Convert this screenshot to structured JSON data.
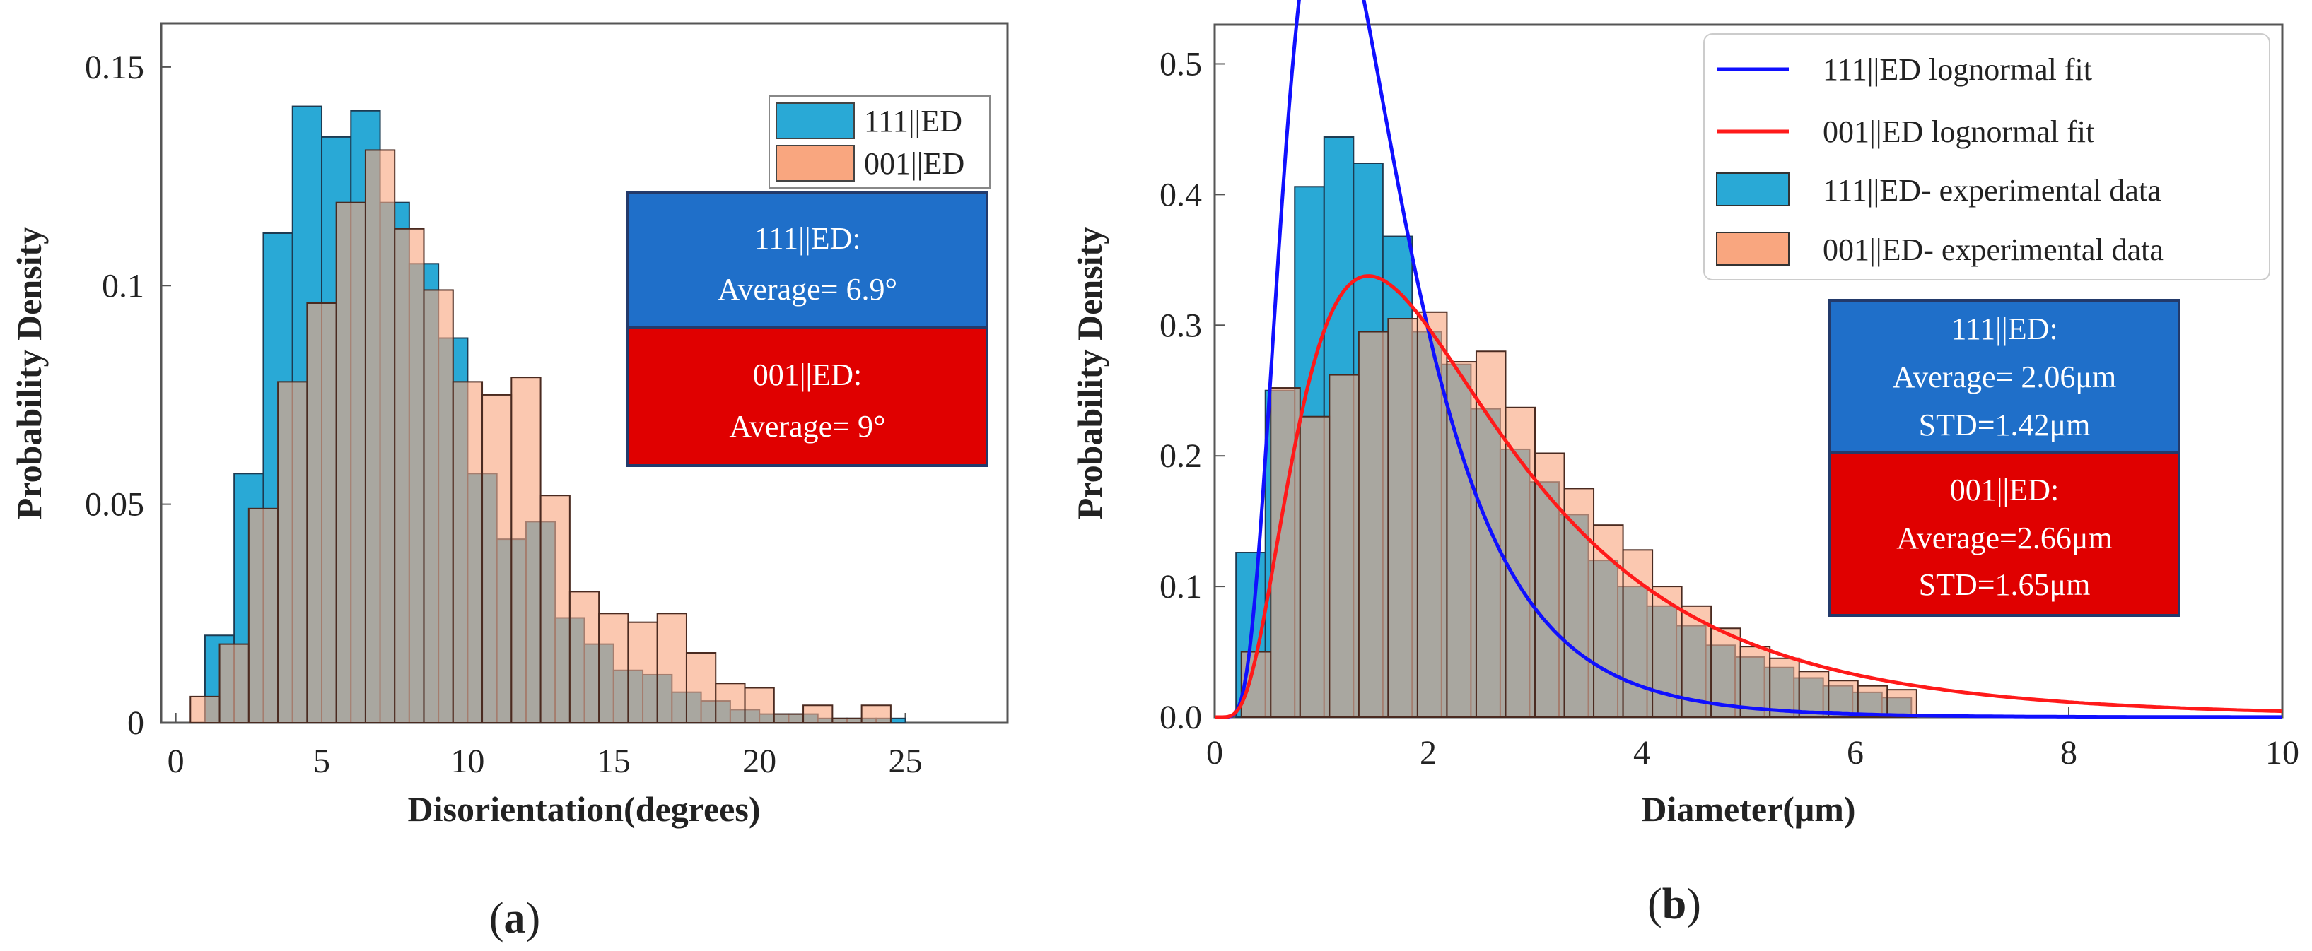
{
  "colors": {
    "blue_bar": "#29a9d6",
    "orange_bar": "#f9a67f",
    "overlap": "#a87566",
    "blue_box": "#1f6fc9",
    "red_box": "#e00000",
    "blue_fit": "#1010ff",
    "red_fit": "#ff1a1a"
  },
  "chart_data": [
    {
      "type": "bar",
      "panel_label": "a",
      "title": "",
      "xlabel": "Disorientation(degrees)",
      "ylabel": "Probability Density",
      "xlim": [
        -0.5,
        28.5
      ],
      "ylim": [
        0,
        0.16
      ],
      "xticks": [
        0,
        5,
        10,
        15,
        20,
        25
      ],
      "xtick_labels": [
        "0",
        "5",
        "10",
        "15",
        "20",
        "25"
      ],
      "yticks": [
        0,
        0.05,
        0.1,
        0.15
      ],
      "ytick_labels": [
        "0",
        "0.05",
        "0.1",
        "0.15"
      ],
      "bin_width": 1.0,
      "legend_position": "top-right",
      "series": [
        {
          "name": "111||ED",
          "color": "#29a9d6",
          "bin_starts": [
            1,
            2,
            3,
            4,
            5,
            6,
            7,
            8,
            9,
            10,
            11,
            12,
            13,
            14,
            15,
            16,
            17,
            18,
            19,
            20,
            21,
            22,
            23,
            24
          ],
          "values": [
            0.02,
            0.057,
            0.112,
            0.141,
            0.134,
            0.14,
            0.119,
            0.105,
            0.088,
            0.057,
            0.042,
            0.046,
            0.024,
            0.018,
            0.012,
            0.011,
            0.007,
            0.005,
            0.003,
            0.002,
            0.002,
            0.001,
            0.001,
            0.001
          ]
        },
        {
          "name": "001||ED",
          "color": "#f9a67f",
          "bin_starts": [
            0.5,
            1.5,
            2.5,
            3.5,
            4.5,
            5.5,
            6.5,
            7.5,
            8.5,
            9.5,
            10.5,
            11.5,
            12.5,
            13.5,
            14.5,
            15.5,
            16.5,
            17.5,
            18.5,
            19.5,
            20.5,
            21.5,
            22.5,
            23.5
          ],
          "values": [
            0.006,
            0.018,
            0.049,
            0.078,
            0.096,
            0.119,
            0.131,
            0.113,
            0.099,
            0.078,
            0.075,
            0.079,
            0.052,
            0.03,
            0.025,
            0.023,
            0.025,
            0.016,
            0.009,
            0.008,
            0.002,
            0.004,
            0.001,
            0.004
          ]
        }
      ],
      "annotations": [
        {
          "series": "111||ED",
          "line1": "111||ED:",
          "line2": "Average= 6.9°"
        },
        {
          "series": "001||ED",
          "line1": "001||ED:",
          "line2": "Average= 9°"
        }
      ]
    },
    {
      "type": "bar",
      "panel_label": "b",
      "title": "",
      "xlabel": "Diameter(μm)",
      "ylabel": "Probability Density",
      "xlim": [
        0,
        10
      ],
      "ylim": [
        0,
        0.53
      ],
      "xticks": [
        0,
        2,
        4,
        6,
        8,
        10
      ],
      "xtick_labels": [
        "0",
        "2",
        "4",
        "6",
        "8",
        "10"
      ],
      "yticks": [
        0,
        0.1,
        0.2,
        0.3,
        0.4,
        0.5
      ],
      "ytick_labels": [
        "0.0",
        "0.1",
        "0.2",
        "0.3",
        "0.4",
        "0.5"
      ],
      "bin_width": 0.275,
      "legend_position": "top-right",
      "series": [
        {
          "name": "111||ED- experimental data",
          "color": "#29a9d6",
          "bin_starts": [
            0.2,
            0.475,
            0.75,
            1.025,
            1.3,
            1.575,
            1.85,
            2.125,
            2.4,
            2.675,
            2.95,
            3.225,
            3.5,
            3.775,
            4.05,
            4.325,
            4.6,
            4.875,
            5.15,
            5.425,
            5.7,
            5.975,
            6.25
          ],
          "values": [
            0.126,
            0.25,
            0.406,
            0.444,
            0.424,
            0.368,
            0.295,
            0.27,
            0.236,
            0.205,
            0.18,
            0.155,
            0.12,
            0.1,
            0.085,
            0.07,
            0.055,
            0.046,
            0.038,
            0.03,
            0.024,
            0.019,
            0.015
          ]
        },
        {
          "name": "001||ED- experimental data",
          "color": "#f9a67f",
          "bin_starts": [
            0.25,
            0.525,
            0.8,
            1.075,
            1.35,
            1.625,
            1.9,
            2.175,
            2.45,
            2.725,
            3.0,
            3.275,
            3.55,
            3.825,
            4.1,
            4.375,
            4.65,
            4.925,
            5.2,
            5.475,
            5.75,
            6.025,
            6.3
          ],
          "values": [
            0.05,
            0.252,
            0.23,
            0.262,
            0.295,
            0.305,
            0.31,
            0.272,
            0.28,
            0.237,
            0.202,
            0.175,
            0.147,
            0.128,
            0.1,
            0.085,
            0.068,
            0.054,
            0.045,
            0.035,
            0.028,
            0.024,
            0.021
          ]
        }
      ],
      "fits": [
        {
          "name": "111||ED lognormal fit",
          "color": "#1010ff",
          "mu": 0.32,
          "sigma": 0.52,
          "x": [
            0,
            10
          ]
        },
        {
          "name": "001||ED lognormal fit",
          "color": "#ff1a1a",
          "mu": 0.8,
          "sigma": 0.66,
          "x": [
            0,
            10
          ]
        }
      ],
      "annotations": [
        {
          "series": "111||ED",
          "line1": "111||ED:",
          "line2": "Average= 2.06μm",
          "line3": "STD=1.42μm"
        },
        {
          "series": "001||ED",
          "line1": "001||ED:",
          "line2": "Average=2.66μm",
          "line3": "STD=1.65μm"
        }
      ]
    }
  ]
}
